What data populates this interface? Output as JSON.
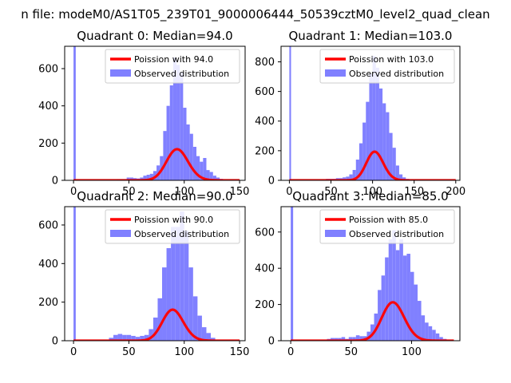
{
  "suptitle": "n file: modeM0/AS1T05_239T01_9000006444_50539cztM0_level2_quad_clean",
  "colors": {
    "hist": "#8080ff",
    "line": "#ff0000",
    "axis": "#000000"
  },
  "chart_data": [
    {
      "type": "histogram",
      "title": "Quadrant 0: Median=94.0",
      "median": 94.0,
      "xlim": [
        -8,
        155
      ],
      "ylim": [
        0,
        720
      ],
      "xticks": [
        0,
        50,
        100,
        150
      ],
      "yticks": [
        0,
        200,
        400,
        600
      ],
      "bin_width": 3,
      "bins": [
        [
          0,
          730
        ],
        [
          39,
          5
        ],
        [
          42,
          5
        ],
        [
          45,
          5
        ],
        [
          48,
          15
        ],
        [
          51,
          15
        ],
        [
          54,
          12
        ],
        [
          57,
          10
        ],
        [
          60,
          15
        ],
        [
          63,
          25
        ],
        [
          66,
          30
        ],
        [
          69,
          35
        ],
        [
          72,
          50
        ],
        [
          75,
          80
        ],
        [
          78,
          130
        ],
        [
          81,
          265
        ],
        [
          84,
          400
        ],
        [
          87,
          510
        ],
        [
          90,
          660
        ],
        [
          93,
          620
        ],
        [
          96,
          580
        ],
        [
          99,
          390
        ],
        [
          102,
          300
        ],
        [
          105,
          250
        ],
        [
          108,
          180
        ],
        [
          111,
          130
        ],
        [
          114,
          100
        ],
        [
          117,
          120
        ],
        [
          120,
          55
        ],
        [
          123,
          45
        ],
        [
          126,
          25
        ],
        [
          129,
          15
        ],
        [
          132,
          8
        ]
      ],
      "legend": [
        "Poission with 94.0",
        "Observed distribution"
      ]
    },
    {
      "type": "histogram",
      "title": "Quadrant 1: Median=103.0",
      "median": 103.0,
      "xlim": [
        -10,
        205
      ],
      "ylim": [
        0,
        905
      ],
      "xticks": [
        0,
        50,
        100,
        150,
        200
      ],
      "yticks": [
        0,
        200,
        400,
        600,
        800
      ],
      "bin_width": 4,
      "bins": [
        [
          0,
          920
        ],
        [
          44,
          10
        ],
        [
          48,
          10
        ],
        [
          52,
          10
        ],
        [
          56,
          15
        ],
        [
          60,
          15
        ],
        [
          64,
          20
        ],
        [
          68,
          25
        ],
        [
          72,
          40
        ],
        [
          76,
          70
        ],
        [
          80,
          140
        ],
        [
          84,
          250
        ],
        [
          88,
          390
        ],
        [
          92,
          530
        ],
        [
          96,
          720
        ],
        [
          100,
          840
        ],
        [
          104,
          760
        ],
        [
          108,
          620
        ],
        [
          112,
          520
        ],
        [
          116,
          460
        ],
        [
          120,
          320
        ],
        [
          124,
          220
        ],
        [
          128,
          100
        ],
        [
          132,
          40
        ],
        [
          136,
          20
        ],
        [
          140,
          10
        ]
      ],
      "legend": [
        "Poission with 103.0",
        "Observed distribution"
      ]
    },
    {
      "type": "histogram",
      "title": "Quadrant 2: Median=90.0",
      "median": 90.0,
      "xlim": [
        -8,
        155
      ],
      "ylim": [
        0,
        695
      ],
      "xticks": [
        0,
        50,
        100,
        150
      ],
      "yticks": [
        0,
        200,
        400,
        600
      ],
      "bin_width": 4,
      "bins": [
        [
          0,
          700
        ],
        [
          32,
          15
        ],
        [
          36,
          30
        ],
        [
          40,
          35
        ],
        [
          44,
          30
        ],
        [
          48,
          30
        ],
        [
          52,
          25
        ],
        [
          56,
          20
        ],
        [
          60,
          25
        ],
        [
          64,
          30
        ],
        [
          68,
          60
        ],
        [
          72,
          120
        ],
        [
          76,
          220
        ],
        [
          80,
          380
        ],
        [
          84,
          480
        ],
        [
          88,
          590
        ],
        [
          92,
          590
        ],
        [
          96,
          670
        ],
        [
          100,
          570
        ],
        [
          104,
          380
        ],
        [
          108,
          230
        ],
        [
          112,
          130
        ],
        [
          116,
          70
        ],
        [
          120,
          40
        ],
        [
          124,
          15
        ]
      ],
      "legend": [
        "Poission with 90.0",
        "Observed distribution"
      ]
    },
    {
      "type": "histogram",
      "title": "Quadrant 3: Median=85.0",
      "median": 85.0,
      "xlim": [
        -8,
        140
      ],
      "ylim": [
        0,
        740
      ],
      "xticks": [
        0,
        50,
        100
      ],
      "yticks": [
        0,
        200,
        400,
        600
      ],
      "bin_width": 3,
      "bins": [
        [
          0,
          750
        ],
        [
          30,
          10
        ],
        [
          33,
          15
        ],
        [
          36,
          15
        ],
        [
          39,
          15
        ],
        [
          42,
          20
        ],
        [
          45,
          10
        ],
        [
          48,
          20
        ],
        [
          51,
          20
        ],
        [
          54,
          30
        ],
        [
          57,
          25
        ],
        [
          60,
          25
        ],
        [
          63,
          50
        ],
        [
          66,
          90
        ],
        [
          69,
          150
        ],
        [
          72,
          280
        ],
        [
          75,
          360
        ],
        [
          78,
          460
        ],
        [
          81,
          560
        ],
        [
          84,
          610
        ],
        [
          87,
          500
        ],
        [
          90,
          560
        ],
        [
          93,
          470
        ],
        [
          96,
          480
        ],
        [
          99,
          380
        ],
        [
          102,
          310
        ],
        [
          105,
          220
        ],
        [
          108,
          140
        ],
        [
          111,
          100
        ],
        [
          114,
          80
        ],
        [
          117,
          60
        ],
        [
          120,
          40
        ],
        [
          123,
          20
        ],
        [
          126,
          10
        ]
      ],
      "legend": [
        "Poission with 85.0",
        "Observed distribution"
      ]
    }
  ]
}
